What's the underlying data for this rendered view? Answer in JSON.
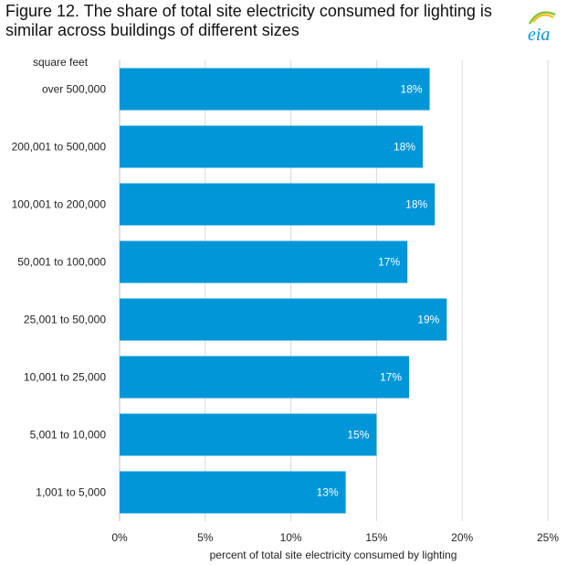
{
  "title": "Figure 12. The share of total site electricity consumed for lighting is similar across buildings of different sizes",
  "logo": {
    "text": "eia",
    "icon": "eia-logo",
    "colors": [
      "#0096d7",
      "#8cc63f",
      "#fdb913"
    ]
  },
  "chart_data": {
    "type": "bar",
    "orientation": "horizontal",
    "category_axis_label": "square feet",
    "xlabel": "percent of total site electricity consumed by lighting",
    "categories": [
      "over 500,000",
      "200,001 to 500,000",
      "100,001 to 200,000",
      "50,001 to 100,000",
      "25,001 to 50,000",
      "10,001 to 25,000",
      "5,001 to 10,000",
      "1,001 to 5,000"
    ],
    "values": [
      18.1,
      17.7,
      18.4,
      16.8,
      19.1,
      16.9,
      15.0,
      13.2
    ],
    "data_labels": [
      "18%",
      "18%",
      "18%",
      "17%",
      "19%",
      "17%",
      "15%",
      "13%"
    ],
    "xlim": [
      0,
      25
    ],
    "xticks": [
      0,
      5,
      10,
      15,
      20,
      25
    ],
    "xtick_labels": [
      "0%",
      "5%",
      "10%",
      "15%",
      "20%",
      "25%"
    ],
    "bar_color": "#0096d7",
    "grid": true
  }
}
